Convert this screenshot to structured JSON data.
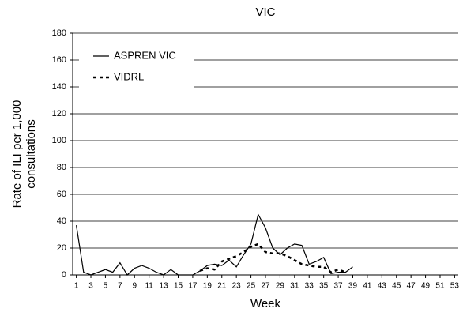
{
  "chart_data": {
    "type": "line",
    "title": "VIC",
    "x_label": "Week",
    "y_label": [
      "Rate of ILI per 1,000",
      "consultations"
    ],
    "x": [
      1,
      2,
      3,
      4,
      5,
      6,
      7,
      8,
      9,
      10,
      11,
      12,
      13,
      14,
      15,
      16,
      17,
      18,
      19,
      20,
      21,
      22,
      23,
      24,
      25,
      26,
      27,
      28,
      29,
      30,
      31,
      32,
      33,
      34,
      35,
      36,
      37,
      38,
      39
    ],
    "series": [
      {
        "name": "ASPREN VIC",
        "color": "#000000",
        "line_style": "solid",
        "values": [
          37,
          2,
          0,
          2,
          4,
          2,
          9,
          0,
          5,
          7,
          5,
          2,
          0,
          4,
          0,
          0,
          0,
          3,
          7,
          8,
          7,
          11,
          6,
          15,
          23,
          45,
          35,
          20,
          15,
          20,
          23,
          22,
          8,
          10,
          13,
          1,
          2,
          2,
          6
        ]
      },
      {
        "name": "VIDRL",
        "color": "#000000",
        "line_style": "dashed",
        "values": [
          null,
          null,
          null,
          null,
          null,
          null,
          null,
          null,
          null,
          null,
          null,
          null,
          null,
          null,
          null,
          null,
          null,
          3,
          5,
          4,
          10,
          12,
          14,
          17,
          21,
          23,
          17,
          16,
          16,
          14,
          11,
          8,
          7,
          6,
          6,
          2,
          4,
          2,
          null
        ]
      }
    ],
    "xlim": [
      0.5,
      53.5
    ],
    "xticks": [
      1,
      3,
      5,
      7,
      9,
      11,
      13,
      15,
      17,
      19,
      21,
      23,
      25,
      27,
      29,
      31,
      33,
      35,
      37,
      39,
      41,
      43,
      45,
      47,
      49,
      51,
      53
    ],
    "ylim": [
      0,
      180
    ],
    "yticks": [
      0,
      20,
      40,
      60,
      80,
      100,
      120,
      140,
      160,
      180
    ],
    "grid": true,
    "legend": "upper left"
  }
}
